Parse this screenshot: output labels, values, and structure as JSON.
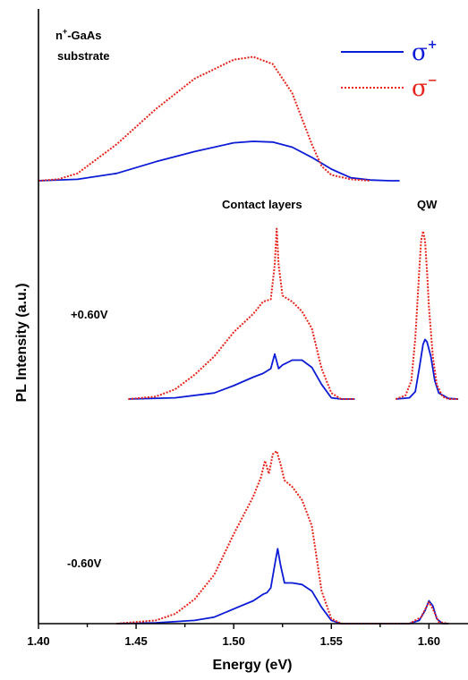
{
  "colors": {
    "sigma_plus": "#0b1bd6",
    "sigma_minus": "#e8231b"
  },
  "chart_data": {
    "type": "line",
    "title": "",
    "xlabel": "Energy (eV)",
    "ylabel": "PL Intensity (a.u.)",
    "xlim": [
      1.4,
      1.62
    ],
    "x_ticks": [
      "1.40",
      "1.45",
      "1.50",
      "1.55",
      "1.60"
    ],
    "x_tick_values": [
      1.4,
      1.45,
      1.5,
      1.55,
      1.6
    ],
    "y_ticks": "none",
    "grid": false,
    "legend": {
      "placement": "top-right",
      "entries": [
        {
          "symbol": "σ",
          "sup": "+",
          "style": "solid",
          "color": "#0b1bd6"
        },
        {
          "symbol": "σ",
          "sup": "−",
          "style": "dotted",
          "color": "#e8231b"
        }
      ]
    },
    "annotations": {
      "substrate_line1": "n",
      "substrate_sup": "+",
      "substrate_rest": "-GaAs",
      "substrate_line2": "substrate",
      "contact_layers": "Contact layers",
      "qw": "QW",
      "bias_pos": "+0.60V",
      "bias_neg": "-0.60V"
    },
    "panels": [
      {
        "id": "substrate",
        "series": [
          {
            "style": "solid",
            "x": [
              1.4,
              1.42,
              1.44,
              1.46,
              1.48,
              1.5,
              1.51,
              1.52,
              1.53,
              1.54,
              1.55,
              1.56,
              1.57,
              1.58,
              1.585
            ],
            "y": [
              0,
              0.01,
              0.05,
              0.13,
              0.2,
              0.26,
              0.27,
              0.265,
              0.23,
              0.16,
              0.08,
              0.02,
              0.005,
              0,
              0
            ]
          },
          {
            "style": "dotted",
            "x": [
              1.4,
              1.41,
              1.42,
              1.44,
              1.46,
              1.48,
              1.5,
              1.51,
              1.52,
              1.53,
              1.54,
              1.545,
              1.55,
              1.56,
              1.57
            ],
            "y": [
              0,
              0.01,
              0.05,
              0.25,
              0.49,
              0.7,
              0.83,
              0.85,
              0.8,
              0.6,
              0.25,
              0.1,
              0.04,
              0.01,
              0
            ]
          }
        ]
      },
      {
        "id": "bias_+0.60V",
        "segments": [
          {
            "series": [
              {
                "style": "solid",
                "x": [
                  1.446,
                  1.47,
                  1.49,
                  1.5,
                  1.51,
                  1.515,
                  1.519,
                  1.521,
                  1.523,
                  1.525,
                  1.53,
                  1.535,
                  1.54,
                  1.545,
                  1.55,
                  1.555,
                  1.562
                ],
                "y": [
                  0,
                  0.01,
                  0.05,
                  0.11,
                  0.18,
                  0.21,
                  0.25,
                  0.37,
                  0.25,
                  0.28,
                  0.32,
                  0.32,
                  0.26,
                  0.12,
                  0.01,
                  0,
                  0
                ]
              },
              {
                "style": "dotted",
                "x": [
                  1.446,
                  1.46,
                  1.47,
                  1.48,
                  1.49,
                  1.5,
                  1.51,
                  1.515,
                  1.519,
                  1.521,
                  1.522,
                  1.523,
                  1.525,
                  1.53,
                  1.535,
                  1.54,
                  1.545,
                  1.55,
                  1.555,
                  1.562
                ],
                "y": [
                  0,
                  0.02,
                  0.08,
                  0.2,
                  0.35,
                  0.55,
                  0.7,
                  0.8,
                  0.82,
                  1.1,
                  1.4,
                  1.1,
                  0.85,
                  0.8,
                  0.72,
                  0.58,
                  0.25,
                  0.05,
                  0,
                  0
                ]
              }
            ]
          },
          {
            "series": [
              {
                "style": "solid",
                "x": [
                  1.583,
                  1.59,
                  1.593,
                  1.595,
                  1.597,
                  1.598,
                  1.599,
                  1.601,
                  1.603,
                  1.605,
                  1.61,
                  1.615
                ],
                "y": [
                  0,
                  0.01,
                  0.06,
                  0.25,
                  0.45,
                  0.49,
                  0.47,
                  0.35,
                  0.15,
                  0.05,
                  0.005,
                  0
                ]
              },
              {
                "style": "dotted",
                "x": [
                  1.583,
                  1.588,
                  1.591,
                  1.593,
                  1.595,
                  1.596,
                  1.597,
                  1.598,
                  1.599,
                  1.6,
                  1.602,
                  1.604,
                  1.607,
                  1.61,
                  1.615
                ],
                "y": [
                  0,
                  0.03,
                  0.15,
                  0.5,
                  1.05,
                  1.3,
                  1.38,
                  1.3,
                  1.05,
                  0.75,
                  0.35,
                  0.12,
                  0.02,
                  0,
                  0
                ]
              }
            ]
          }
        ]
      },
      {
        "id": "bias_-0.60V",
        "series": [
          {
            "style": "solid",
            "x": [
              1.44,
              1.46,
              1.48,
              1.49,
              1.5,
              1.51,
              1.515,
              1.517,
              1.519,
              1.521,
              1.5225,
              1.524,
              1.526,
              1.53,
              1.535,
              1.54,
              1.545,
              1.55,
              1.555,
              1.56,
              1.57,
              1.58,
              1.59,
              1.595,
              1.598,
              1.6,
              1.602,
              1.604,
              1.607,
              1.61
            ],
            "y": [
              0,
              0.005,
              0.02,
              0.04,
              0.09,
              0.14,
              0.18,
              0.19,
              0.22,
              0.36,
              0.46,
              0.36,
              0.25,
              0.25,
              0.24,
              0.2,
              0.1,
              0.02,
              0,
              0,
              0,
              0,
              0,
              0.02,
              0.08,
              0.14,
              0.11,
              0.03,
              0,
              0
            ]
          },
          {
            "style": "dotted",
            "x": [
              1.44,
              1.46,
              1.47,
              1.48,
              1.49,
              1.5,
              1.51,
              1.514,
              1.516,
              1.518,
              1.52,
              1.522,
              1.524,
              1.526,
              1.53,
              1.535,
              1.54,
              1.545,
              1.55,
              1.555,
              1.56,
              1.57,
              1.58,
              1.59,
              1.596,
              1.599,
              1.6,
              1.602,
              1.605,
              1.61
            ],
            "y": [
              0,
              0.02,
              0.06,
              0.15,
              0.3,
              0.55,
              0.78,
              0.9,
              1.0,
              0.92,
              1.04,
              1.06,
              0.98,
              0.88,
              0.84,
              0.76,
              0.6,
              0.2,
              0.03,
              0,
              0,
              0,
              0,
              0,
              0.04,
              0.11,
              0.13,
              0.09,
              0.01,
              0
            ]
          }
        ]
      }
    ]
  }
}
